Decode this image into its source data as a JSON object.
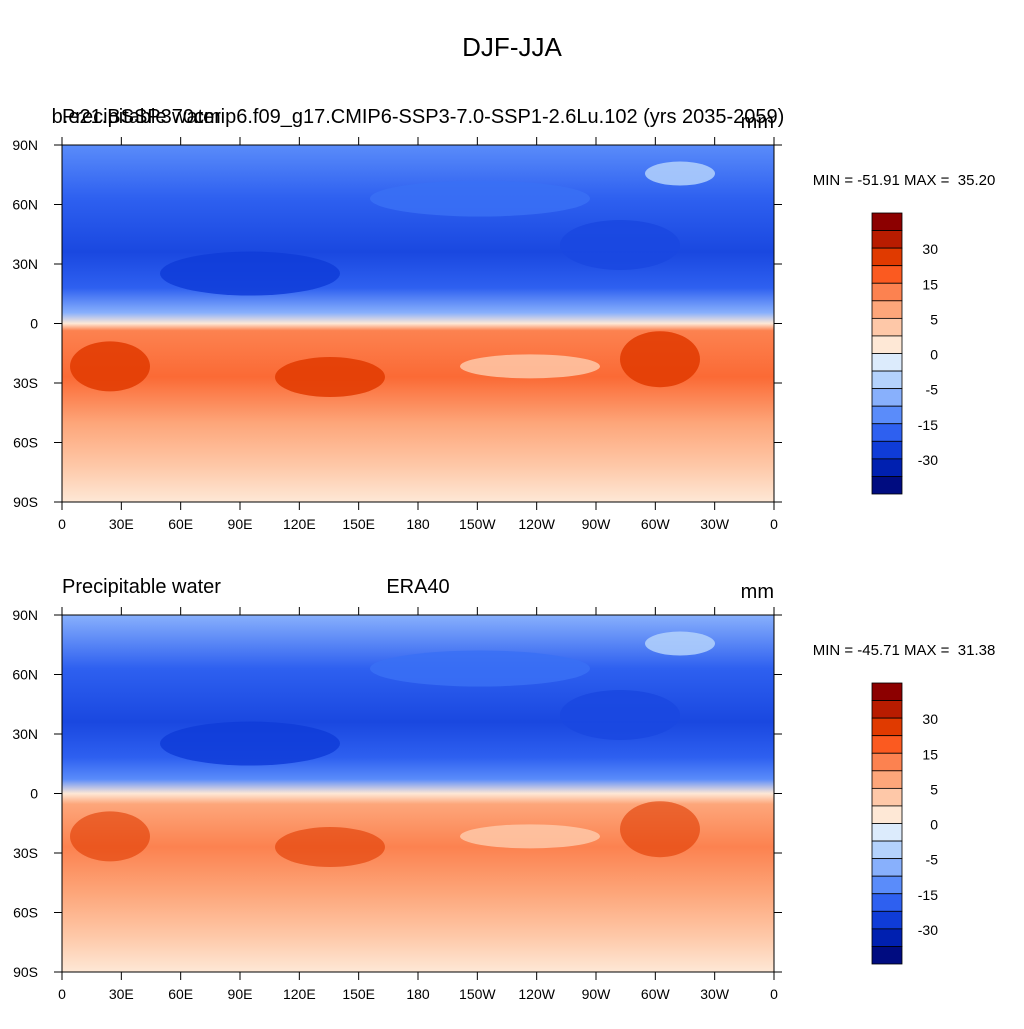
{
  "title": "DJF-JJA",
  "panels": [
    {
      "left": "Precipitable water",
      "center": "b.e21.BSSP370cmip6.f09_g17.CMIP6-SSP3-7.0-SSP1-2.6Lu.102 (yrs 2035-2059)",
      "right": "mm",
      "minmax": "MIN = -51.91 MAX =  35.20"
    },
    {
      "left": "Precipitable water",
      "center": "ERA40",
      "right": "mm",
      "minmax": "MIN = -45.71 MAX =  31.38"
    }
  ],
  "x_ticks": [
    "0",
    "30E",
    "60E",
    "90E",
    "120E",
    "150E",
    "180",
    "150W",
    "120W",
    "90W",
    "60W",
    "30W",
    "0"
  ],
  "y_ticks": [
    "90N",
    "60N",
    "30N",
    "0",
    "30S",
    "60S",
    "90S"
  ],
  "colorbar": {
    "labels": [
      "30",
      "15",
      "5",
      "0",
      "-5",
      "-15",
      "-30"
    ],
    "colors": [
      "#8c0000",
      "#b81c00",
      "#e03a00",
      "#fb5a20",
      "#fc8250",
      "#fda67a",
      "#fec8a8",
      "#fee8d6",
      "#dcebfc",
      "#b4d2fc",
      "#88b0fc",
      "#5a8cfa",
      "#2e60f0",
      "#0f3cd8",
      "#0020b0",
      "#000c80"
    ]
  }
}
